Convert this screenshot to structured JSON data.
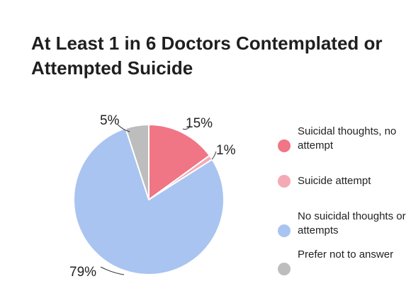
{
  "chart_data": {
    "type": "pie",
    "title": "At Least 1 in 6 Doctors Contemplated or Attempted Suicide",
    "slices": [
      {
        "label": "Suicidal thoughts, no attempt",
        "value": 15,
        "value_label": "15%",
        "color": "#f07585"
      },
      {
        "label": "Suicide attempt",
        "value": 1,
        "value_label": "1%",
        "color": "#f4aab4"
      },
      {
        "label": "No suicidal thoughts or attempts",
        "value": 79,
        "value_label": "79%",
        "color": "#a9c4f0"
      },
      {
        "label": "Prefer not to answer",
        "value": 5,
        "value_label": "5%",
        "color": "#bdbdbd"
      }
    ],
    "legend_position": "right"
  }
}
